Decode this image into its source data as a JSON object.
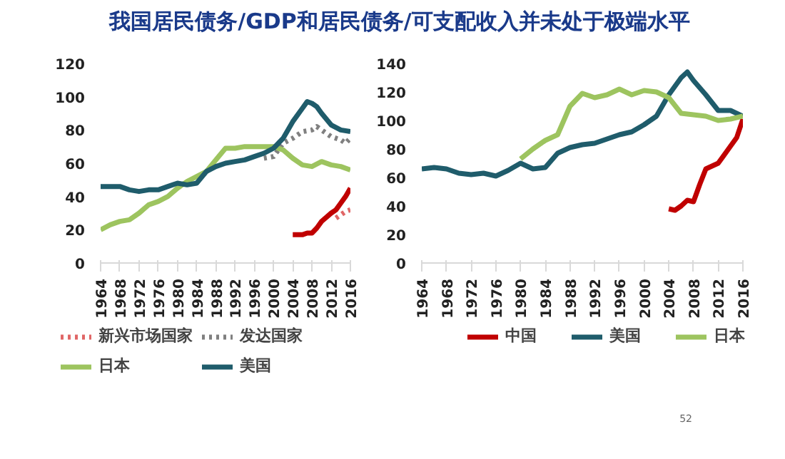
{
  "chart_data": [
    {
      "type": "line",
      "title": "我国居民债务/GDP和居民债务/可支配收入并未处于极端水平",
      "xlim": [
        1964,
        2016
      ],
      "xticks": [
        1964,
        1968,
        1972,
        1976,
        1980,
        1984,
        1988,
        1992,
        1996,
        2000,
        2004,
        2008,
        2012,
        2016
      ],
      "ylim": [
        0,
        120
      ],
      "yticks": [
        0,
        20,
        40,
        60,
        80,
        100,
        120
      ],
      "grid": false,
      "legend": "bottom",
      "series": [
        {
          "name": "新兴市场国家",
          "color": "#e06666",
          "line_style": "dotted",
          "x": [
            2013,
            2014,
            2015,
            2016
          ],
          "values": [
            27,
            29,
            31,
            32
          ]
        },
        {
          "name": "发达国家",
          "color": "#808080",
          "line_style": "dotted",
          "x": [
            1998,
            2000,
            2002,
            2004,
            2006,
            2008,
            2009,
            2010,
            2012,
            2014,
            2015,
            2016
          ],
          "values": [
            63,
            64,
            72,
            75,
            79,
            80,
            82,
            80,
            76,
            74,
            72,
            75
          ]
        },
        {
          "name": "日本",
          "color": "#9dc45f",
          "line_style": "solid",
          "x": [
            1964,
            1966,
            1968,
            1970,
            1972,
            1974,
            1976,
            1978,
            1980,
            1982,
            1984,
            1986,
            1988,
            1990,
            1992,
            1994,
            1996,
            1998,
            2000,
            2002,
            2004,
            2006,
            2008,
            2010,
            2012,
            2014,
            2016
          ],
          "values": [
            20,
            23,
            25,
            26,
            30,
            35,
            37,
            40,
            45,
            49,
            52,
            55,
            62,
            69,
            69,
            70,
            70,
            70,
            70,
            68,
            63,
            59,
            58,
            61,
            59,
            58,
            56
          ]
        },
        {
          "name": "美国",
          "color": "#1f5c6b",
          "line_style": "solid",
          "x": [
            1964,
            1966,
            1968,
            1970,
            1972,
            1974,
            1976,
            1978,
            1980,
            1982,
            1984,
            1986,
            1988,
            1990,
            1992,
            1994,
            1996,
            1998,
            2000,
            2002,
            2004,
            2006,
            2007,
            2008,
            2009,
            2010,
            2012,
            2014,
            2016
          ],
          "values": [
            46,
            46,
            46,
            44,
            43,
            44,
            44,
            46,
            48,
            47,
            48,
            55,
            58,
            60,
            61,
            62,
            64,
            66,
            69,
            75,
            85,
            93,
            97,
            96,
            94,
            90,
            83,
            80,
            79
          ]
        },
        {
          "color": "#c00000",
          "line_style": "solid",
          "x": [
            2004,
            2006,
            2007,
            2008,
            2009,
            2010,
            2012,
            2013,
            2014,
            2015,
            2016
          ],
          "values": [
            17,
            17,
            18,
            18,
            21,
            25,
            30,
            32,
            36,
            40,
            45
          ]
        }
      ]
    },
    {
      "type": "line",
      "xlim": [
        1964,
        2016
      ],
      "xticks": [
        1964,
        1968,
        1972,
        1976,
        1980,
        1984,
        1988,
        1992,
        1996,
        2000,
        2004,
        2008,
        2012,
        2016
      ],
      "ylim": [
        0,
        140
      ],
      "yticks": [
        0,
        20,
        40,
        60,
        80,
        100,
        120,
        140
      ],
      "grid": false,
      "legend": "bottom",
      "annotations": [
        "52"
      ],
      "series": [
        {
          "name": "中国",
          "color": "#c00000",
          "line_style": "solid",
          "x": [
            2004,
            2005,
            2006,
            2007,
            2008,
            2009,
            2010,
            2012,
            2014,
            2015,
            2016
          ],
          "values": [
            38,
            37,
            40,
            44,
            43,
            55,
            66,
            70,
            82,
            88,
            101
          ]
        },
        {
          "name": "美国",
          "color": "#1f5c6b",
          "line_style": "solid",
          "x": [
            1964,
            1966,
            1968,
            1970,
            1972,
            1974,
            1976,
            1978,
            1980,
            1982,
            1984,
            1986,
            1988,
            1990,
            1992,
            1994,
            1996,
            1998,
            2000,
            2002,
            2004,
            2006,
            2007,
            2008,
            2010,
            2012,
            2014,
            2016
          ],
          "values": [
            66,
            67,
            66,
            63,
            62,
            63,
            61,
            65,
            70,
            66,
            67,
            77,
            81,
            83,
            84,
            87,
            90,
            92,
            97,
            103,
            118,
            130,
            134,
            128,
            118,
            107,
            107,
            103
          ]
        },
        {
          "name": "日本",
          "color": "#9dc45f",
          "line_style": "solid",
          "x": [
            1980,
            1982,
            1984,
            1986,
            1988,
            1990,
            1992,
            1994,
            1996,
            1998,
            2000,
            2002,
            2004,
            2006,
            2008,
            2010,
            2012,
            2014,
            2016
          ],
          "values": [
            73,
            80,
            86,
            90,
            110,
            119,
            116,
            118,
            122,
            118,
            121,
            120,
            116,
            105,
            104,
            103,
            100,
            101,
            103
          ]
        }
      ]
    }
  ]
}
